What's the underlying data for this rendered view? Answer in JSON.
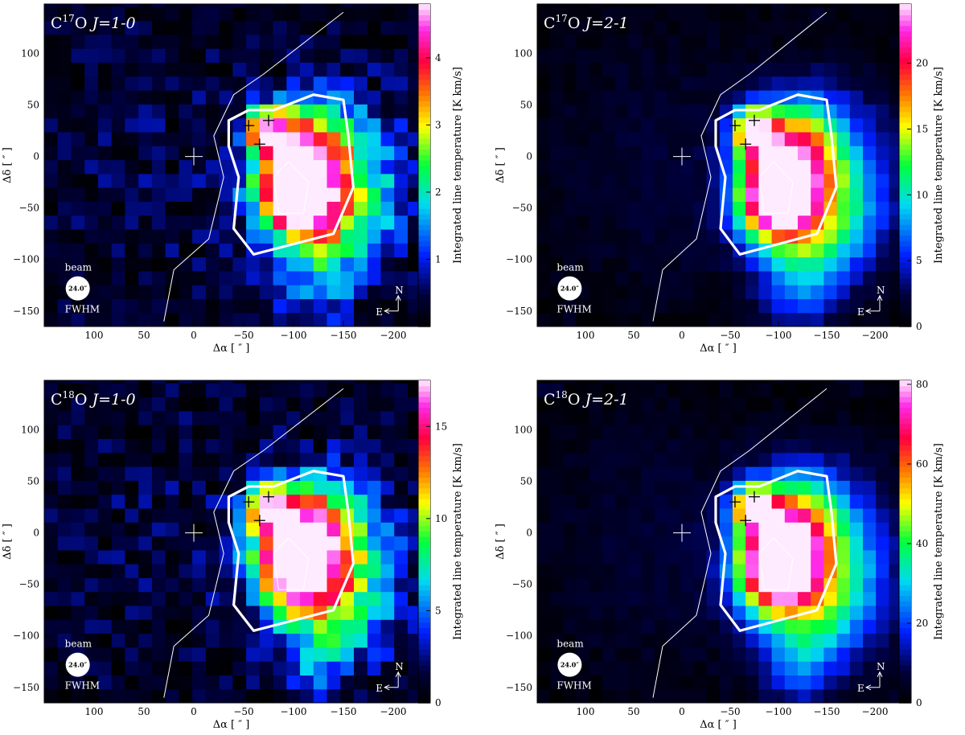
{
  "chart_data": [
    {
      "type": "heatmap",
      "title": "C17O J=1-0",
      "title_parts": {
        "species": "C",
        "iso": "17",
        "tail": "O",
        "transition": "J=1-0"
      },
      "xlabel": "Δα [ ″ ]",
      "ylabel": "Δδ [ ″ ]",
      "colorbar_label": "Integrated line temperature [K km/s]",
      "xlim": [
        150,
        -225
      ],
      "ylim": [
        -165,
        148
      ],
      "x_ticks": [
        100,
        50,
        0,
        -50,
        -100,
        -150,
        -200
      ],
      "y_ticks": [
        -150,
        -100,
        -50,
        0,
        50,
        100
      ],
      "colorbar_range": [
        0,
        4.8
      ],
      "colorbar_ticks": [
        1,
        2,
        3,
        4
      ],
      "peak": {
        "x": -100,
        "y": -35,
        "value": 4.5
      },
      "beam": {
        "label": "beam",
        "size": "24.0″",
        "fwhm": "FWHM"
      },
      "compass": {
        "north": "N",
        "east": "E"
      }
    },
    {
      "type": "heatmap",
      "title": "C17O J=2-1",
      "title_parts": {
        "species": "C",
        "iso": "17",
        "tail": "O",
        "transition": "J=2-1"
      },
      "xlabel": "Δα [ ″ ]",
      "ylabel": "Δδ [ ″ ]",
      "colorbar_label": "Integrated line temperature [K km/s]",
      "xlim": [
        150,
        -225
      ],
      "ylim": [
        -165,
        148
      ],
      "x_ticks": [
        100,
        50,
        0,
        -50,
        -100,
        -150,
        -200
      ],
      "y_ticks": [
        -150,
        -100,
        -50,
        0,
        50,
        100
      ],
      "colorbar_range": [
        0,
        24.5
      ],
      "colorbar_ticks": [
        0,
        5,
        10,
        15,
        20
      ],
      "peak": {
        "x": -95,
        "y": -40,
        "value": 24
      },
      "beam": {
        "label": "beam",
        "size": "24.0″",
        "fwhm": "FWHM"
      },
      "compass": {
        "north": "N",
        "east": "E"
      }
    },
    {
      "type": "heatmap",
      "title": "C18O J=1-0",
      "title_parts": {
        "species": "C",
        "iso": "18",
        "tail": "O",
        "transition": "J=1-0"
      },
      "xlabel": "Δα [ ″ ]",
      "ylabel": "Δδ [ ″ ]",
      "colorbar_label": "Integrated line temperature [K km/s]",
      "xlim": [
        150,
        -225
      ],
      "ylim": [
        -165,
        148
      ],
      "x_ticks": [
        100,
        50,
        0,
        -50,
        -100,
        -150,
        -200
      ],
      "y_ticks": [
        -150,
        -100,
        -50,
        0,
        50,
        100
      ],
      "colorbar_range": [
        0,
        17.5
      ],
      "colorbar_ticks": [
        0,
        5,
        10,
        15
      ],
      "peak": {
        "x": -100,
        "y": -30,
        "value": 17
      },
      "beam": {
        "label": "beam",
        "size": "24.0″",
        "fwhm": "FWHM"
      },
      "compass": {
        "north": "N",
        "east": "E"
      }
    },
    {
      "type": "heatmap",
      "title": "C18O J=2-1",
      "title_parts": {
        "species": "C",
        "iso": "18",
        "tail": "O",
        "transition": "J=2-1"
      },
      "xlabel": "Δα [ ″ ]",
      "ylabel": "Δδ [ ″ ]",
      "colorbar_label": "Integrated line temperature [K km/s]",
      "xlim": [
        150,
        -225
      ],
      "ylim": [
        -165,
        148
      ],
      "x_ticks": [
        100,
        50,
        0,
        -50,
        -100,
        -150,
        -200
      ],
      "y_ticks": [
        -150,
        -100,
        -50,
        0,
        50,
        100
      ],
      "colorbar_range": [
        0,
        81
      ],
      "colorbar_ticks": [
        0,
        20,
        40,
        60,
        80
      ],
      "peak": {
        "x": -95,
        "y": -35,
        "value": 80
      },
      "beam": {
        "label": "beam",
        "size": "24.0″",
        "fwhm": "FWHM"
      },
      "compass": {
        "north": "N",
        "east": "E"
      }
    }
  ]
}
